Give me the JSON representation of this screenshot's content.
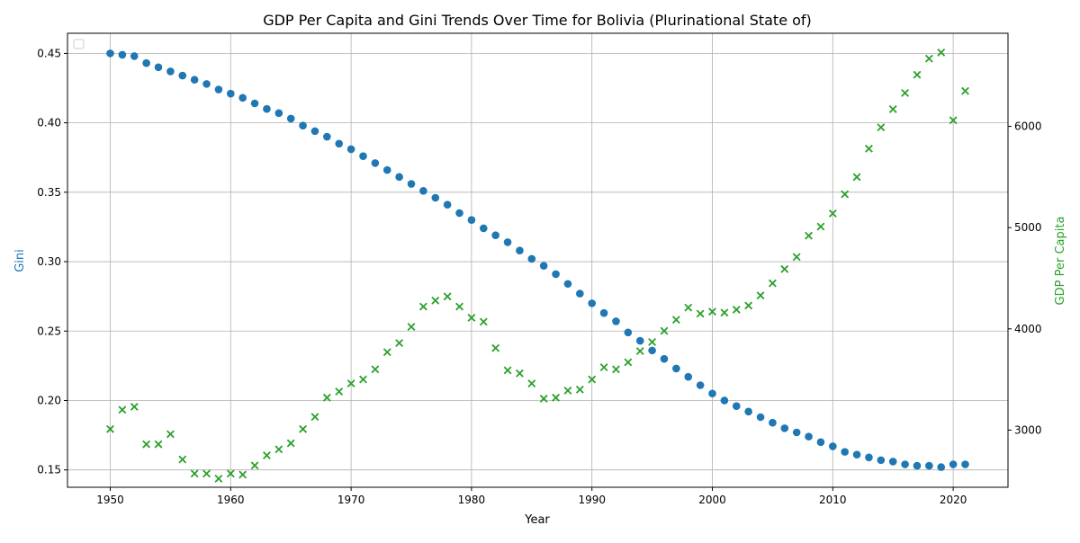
{
  "chart_data": {
    "type": "scatter",
    "title": "GDP Per Capita and Gini Trends Over Time for Bolivia (Plurinational State of)",
    "xlabel": "Year",
    "ylabel_left": "Gini",
    "ylabel_right": "GDP Per Capita",
    "xlim": [
      1946.45,
      1924.55
    ],
    "x_ticks": [
      1950,
      1960,
      1970,
      1980,
      1990,
      2000,
      2010,
      2020
    ],
    "ylim_left": [
      0.1375,
      0.4645
    ],
    "y_ticks_left": [
      0.15,
      0.2,
      0.25,
      0.3,
      0.35,
      0.4,
      0.45
    ],
    "y_tick_labels_left": [
      "0.15",
      "0.20",
      "0.25",
      "0.30",
      "0.35",
      "0.40",
      "0.45"
    ],
    "ylim_right": [
      2435,
      6920
    ],
    "y_ticks_right": [
      3000,
      4000,
      5000,
      6000
    ],
    "grid": true,
    "legend": "top-left (empty)",
    "colors": {
      "gini": "#1f77b4",
      "gdp": "#2ca02c",
      "grid": "#b0b0b0"
    },
    "x": [
      1950,
      1951,
      1952,
      1953,
      1954,
      1955,
      1956,
      1957,
      1958,
      1959,
      1960,
      1961,
      1962,
      1963,
      1964,
      1965,
      1966,
      1967,
      1968,
      1969,
      1970,
      1971,
      1972,
      1973,
      1974,
      1975,
      1976,
      1977,
      1978,
      1979,
      1980,
      1981,
      1982,
      1983,
      1984,
      1985,
      1986,
      1987,
      1988,
      1989,
      1990,
      1991,
      1992,
      1993,
      1994,
      1995,
      1996,
      1997,
      1998,
      1999,
      2000,
      2001,
      2002,
      2003,
      2004,
      2005,
      2006,
      2007,
      2008,
      2009,
      2010,
      2011,
      2012,
      2013,
      2014,
      2015,
      2016,
      2017,
      2018,
      2019,
      2020,
      2021
    ],
    "series": [
      {
        "axis": "left",
        "marker": "circle",
        "values": [
          0.45,
          0.449,
          0.448,
          0.443,
          0.44,
          0.437,
          0.434,
          0.431,
          0.428,
          0.424,
          0.421,
          0.418,
          0.414,
          0.41,
          0.407,
          0.403,
          0.398,
          0.394,
          0.39,
          0.385,
          0.381,
          0.376,
          0.371,
          0.366,
          0.361,
          0.356,
          0.351,
          0.346,
          0.341,
          0.335,
          0.33,
          0.324,
          0.319,
          0.314,
          0.308,
          0.302,
          0.297,
          0.291,
          0.284,
          0.277,
          0.27,
          0.263,
          0.257,
          0.249,
          0.243,
          0.236,
          0.23,
          0.223,
          0.217,
          0.211,
          0.205,
          0.2,
          0.196,
          0.192,
          0.188,
          0.184,
          0.18,
          0.177,
          0.174,
          0.17,
          0.167,
          0.163,
          0.161,
          0.159,
          0.157,
          0.156,
          0.154,
          0.153,
          0.153,
          0.152,
          0.154,
          0.154
        ]
      },
      {
        "axis": "right",
        "marker": "x",
        "values": [
          3010,
          3200,
          3230,
          2860,
          2860,
          2960,
          2710,
          2570,
          2570,
          2520,
          2570,
          2560,
          2650,
          2750,
          2810,
          2870,
          3010,
          3130,
          3320,
          3380,
          3460,
          3500,
          3600,
          3770,
          3860,
          4020,
          4220,
          4280,
          4320,
          4220,
          4110,
          4070,
          3810,
          3590,
          3560,
          3460,
          3310,
          3320,
          3390,
          3400,
          3500,
          3620,
          3600,
          3670,
          3780,
          3870,
          3980,
          4090,
          4210,
          4150,
          4170,
          4160,
          4190,
          4230,
          4330,
          4450,
          4590,
          4710,
          4920,
          5010,
          5140,
          5330,
          5500,
          5780,
          5990,
          6170,
          6330,
          6510,
          6670,
          6730,
          6060,
          6350
        ]
      }
    ]
  }
}
